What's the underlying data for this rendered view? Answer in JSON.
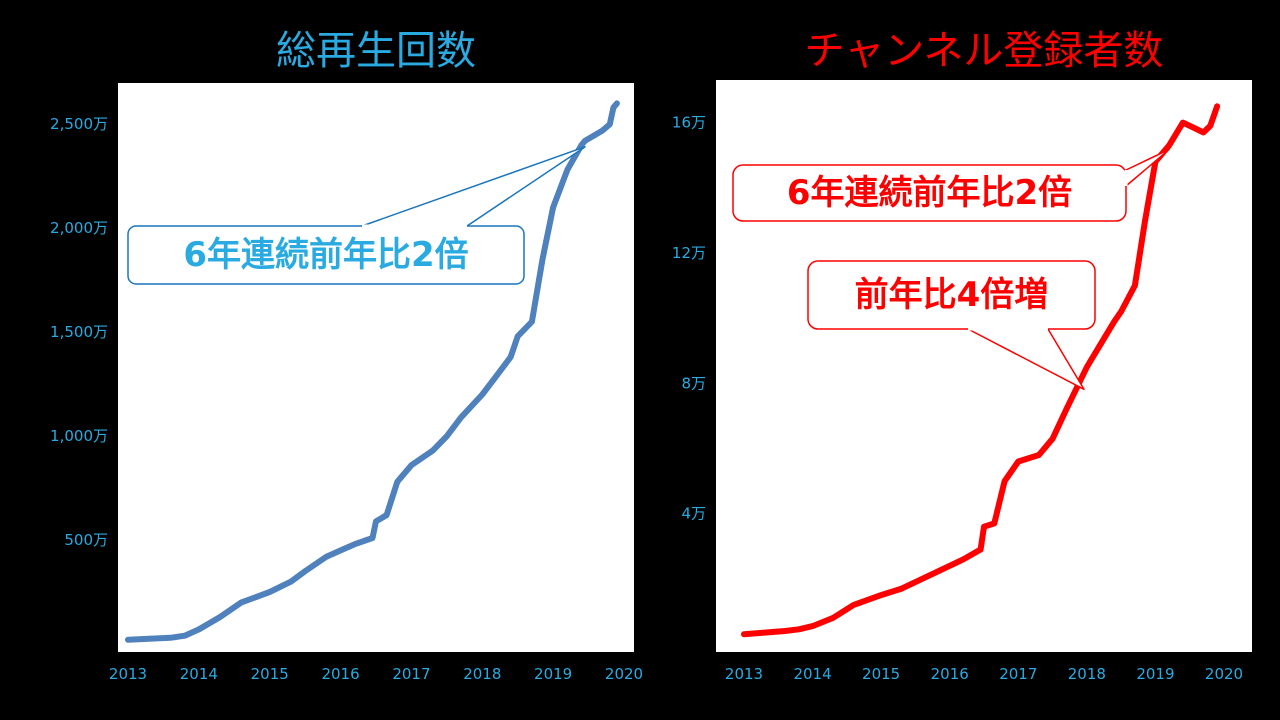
{
  "chart_data": [
    {
      "type": "line",
      "title": "総再生回数",
      "color": "#4f81bd",
      "title_color": "#29abe2",
      "tick_color": "#29abe2",
      "x_ticks": [
        "2013",
        "2014",
        "2015",
        "2016",
        "2017",
        "2018",
        "2019",
        "2020"
      ],
      "y_ticks": [
        "500万",
        "1,000万",
        "1,500万",
        "2,000万",
        "2,500万"
      ],
      "y_tick_values": [
        500,
        1000,
        1500,
        2000,
        2500
      ],
      "xlim": [
        2013,
        2020
      ],
      "ylim": [
        0,
        2650
      ],
      "y_unit": "万",
      "grid": false,
      "series": [
        {
          "x": [
            2013.0,
            2013.3,
            2013.6,
            2013.8,
            2014.0,
            2014.3,
            2014.6,
            2015.0,
            2015.3,
            2015.5,
            2015.8,
            2016.0,
            2016.2,
            2016.45,
            2016.5,
            2016.65,
            2016.8,
            2017.0,
            2017.3,
            2017.5,
            2017.7,
            2018.0,
            2018.2,
            2018.4,
            2018.5,
            2018.7,
            2018.85,
            2019.0,
            2019.2,
            2019.4,
            2019.45,
            2019.7,
            2019.8,
            2019.85,
            2019.9
          ],
          "values": [
            20,
            25,
            30,
            40,
            70,
            130,
            200,
            250,
            300,
            350,
            420,
            450,
            480,
            510,
            590,
            620,
            780,
            860,
            930,
            1000,
            1090,
            1200,
            1290,
            1380,
            1480,
            1550,
            1850,
            2100,
            2280,
            2400,
            2420,
            2470,
            2500,
            2580,
            2600
          ]
        }
      ],
      "callout": {
        "text": "6年連続前年比2倍",
        "text_color": "#29abe2",
        "border_color": "#1a75bc",
        "pointer_to": {
          "x": 2019.45,
          "y": 2420
        }
      }
    },
    {
      "type": "line",
      "title": "チャンネル登録者数",
      "color": "#ff0000",
      "title_color": "#ff0000",
      "tick_color": "#29abe2",
      "x_ticks": [
        "2013",
        "2014",
        "2015",
        "2016",
        "2017",
        "2018",
        "2019",
        "2020"
      ],
      "y_ticks": [
        "4万",
        "8万",
        "12万",
        "16万"
      ],
      "y_tick_values": [
        4,
        8,
        12,
        16
      ],
      "xlim": [
        2013,
        2020
      ],
      "ylim": [
        0,
        17
      ],
      "y_unit": "万",
      "grid": false,
      "series": [
        {
          "x": [
            2013.0,
            2013.3,
            2013.6,
            2013.8,
            2014.0,
            2014.3,
            2014.6,
            2015.0,
            2015.3,
            2015.5,
            2015.8,
            2016.0,
            2016.2,
            2016.45,
            2016.5,
            2016.65,
            2016.8,
            2017.0,
            2017.3,
            2017.5,
            2017.7,
            2018.0,
            2018.2,
            2018.4,
            2018.5,
            2018.7,
            2018.85,
            2019.0,
            2019.2,
            2019.4,
            2019.5,
            2019.7,
            2019.8,
            2019.85,
            2019.9
          ],
          "values": [
            0.3,
            0.35,
            0.4,
            0.45,
            0.55,
            0.8,
            1.2,
            1.5,
            1.7,
            1.9,
            2.2,
            2.4,
            2.6,
            2.9,
            3.6,
            3.7,
            5.0,
            5.6,
            5.8,
            6.3,
            7.2,
            8.5,
            9.2,
            9.9,
            10.2,
            11.0,
            13.0,
            14.8,
            15.3,
            16.0,
            15.9,
            15.7,
            15.9,
            16.2,
            16.5
          ]
        }
      ],
      "callouts": [
        {
          "text": "6年連続前年比2倍",
          "text_color": "#ff0000",
          "border_color": "#ff0000",
          "pointer_to": {
            "x": 2019.2,
            "y": 15.3
          }
        },
        {
          "text": "前年比4倍増",
          "text_color": "#ff0000",
          "border_color": "#ff0000",
          "pointer_to": {
            "x": 2017.9,
            "y": 8.0
          }
        }
      ]
    }
  ]
}
